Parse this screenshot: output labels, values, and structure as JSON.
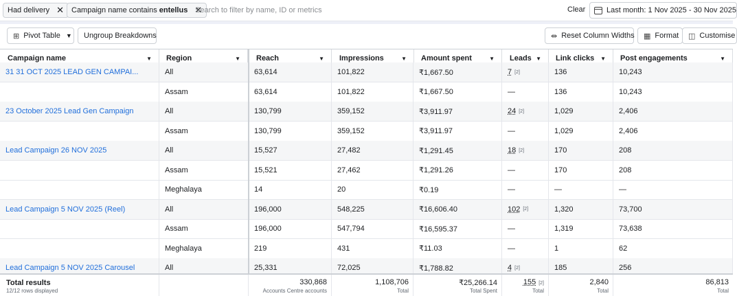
{
  "filters": {
    "chip1": "Had delivery",
    "chip2_prefix": "Campaign name contains",
    "chip2_value": "entellus",
    "search_placeholder": "Search to filter by name, ID or metrics",
    "clear": "Clear",
    "date_range": "Last month: 1 Nov 2025 - 30 Nov 2025"
  },
  "toolbar": {
    "pivot_table": "Pivot Table",
    "ungroup": "Ungroup Breakdowns",
    "reset_widths": "Reset Column Widths",
    "format": "Format",
    "customise": "Customise"
  },
  "columns": [
    "Campaign name",
    "Region",
    "Reach",
    "Impressions",
    "Amount spent",
    "Leads",
    "Link clicks",
    "Post engagements"
  ],
  "rows": [
    {
      "campaign": "31 31 OCT 2025 LEAD GEN CAMPAI...",
      "region": "All",
      "reach": "63,614",
      "impressions": "101,822",
      "spent": "₹1,667.50",
      "leads": "7",
      "leads_note": "[2]",
      "clicks": "136",
      "engagements": "10,243"
    },
    {
      "campaign": "",
      "region": "Assam",
      "reach": "63,614",
      "impressions": "101,822",
      "spent": "₹1,667.50",
      "leads": "—",
      "leads_note": "",
      "clicks": "136",
      "engagements": "10,243"
    },
    {
      "campaign": "23 October 2025 Lead Gen Campaign",
      "region": "All",
      "reach": "130,799",
      "impressions": "359,152",
      "spent": "₹3,911.97",
      "leads": "24",
      "leads_note": "[2]",
      "clicks": "1,029",
      "engagements": "2,406"
    },
    {
      "campaign": "",
      "region": "Assam",
      "reach": "130,799",
      "impressions": "359,152",
      "spent": "₹3,911.97",
      "leads": "—",
      "leads_note": "",
      "clicks": "1,029",
      "engagements": "2,406"
    },
    {
      "campaign": "Lead Campaign 26 NOV 2025",
      "region": "All",
      "reach": "15,527",
      "impressions": "27,482",
      "spent": "₹1,291.45",
      "leads": "18",
      "leads_note": "[2]",
      "clicks": "170",
      "engagements": "208"
    },
    {
      "campaign": "",
      "region": "Assam",
      "reach": "15,521",
      "impressions": "27,462",
      "spent": "₹1,291.26",
      "leads": "—",
      "leads_note": "",
      "clicks": "170",
      "engagements": "208"
    },
    {
      "campaign": "",
      "region": "Meghalaya",
      "reach": "14",
      "impressions": "20",
      "spent": "₹0.19",
      "leads": "—",
      "leads_note": "",
      "clicks": "—",
      "engagements": "—"
    },
    {
      "campaign": "Lead Campaign 5 NOV 2025 (Reel)",
      "region": "All",
      "reach": "196,000",
      "impressions": "548,225",
      "spent": "₹16,606.40",
      "leads": "102",
      "leads_note": "[2]",
      "clicks": "1,320",
      "engagements": "73,700"
    },
    {
      "campaign": "",
      "region": "Assam",
      "reach": "196,000",
      "impressions": "547,794",
      "spent": "₹16,595.37",
      "leads": "—",
      "leads_note": "",
      "clicks": "1,319",
      "engagements": "73,638"
    },
    {
      "campaign": "",
      "region": "Meghalaya",
      "reach": "219",
      "impressions": "431",
      "spent": "₹11.03",
      "leads": "—",
      "leads_note": "",
      "clicks": "1",
      "engagements": "62"
    },
    {
      "campaign": "Lead Campaign 5 NOV 2025 Carousel",
      "region": "All",
      "reach": "25,331",
      "impressions": "72,025",
      "spent": "₹1,788.82",
      "leads": "4",
      "leads_note": "[2]",
      "clicks": "185",
      "engagements": "256"
    }
  ],
  "totals": {
    "title": "Total results",
    "subtitle": "12/12 rows displayed",
    "reach": "330,868",
    "reach_sub": "Accounts Centre accounts",
    "impressions": "1,108,706",
    "impressions_sub": "Total",
    "spent": "₹25,266.14",
    "spent_sub": "Total Spent",
    "leads": "155",
    "leads_note": "[2]",
    "leads_sub": "Total",
    "clicks": "2,840",
    "clicks_sub": "Total",
    "engagements": "86,813",
    "engagements_sub": "Total"
  }
}
